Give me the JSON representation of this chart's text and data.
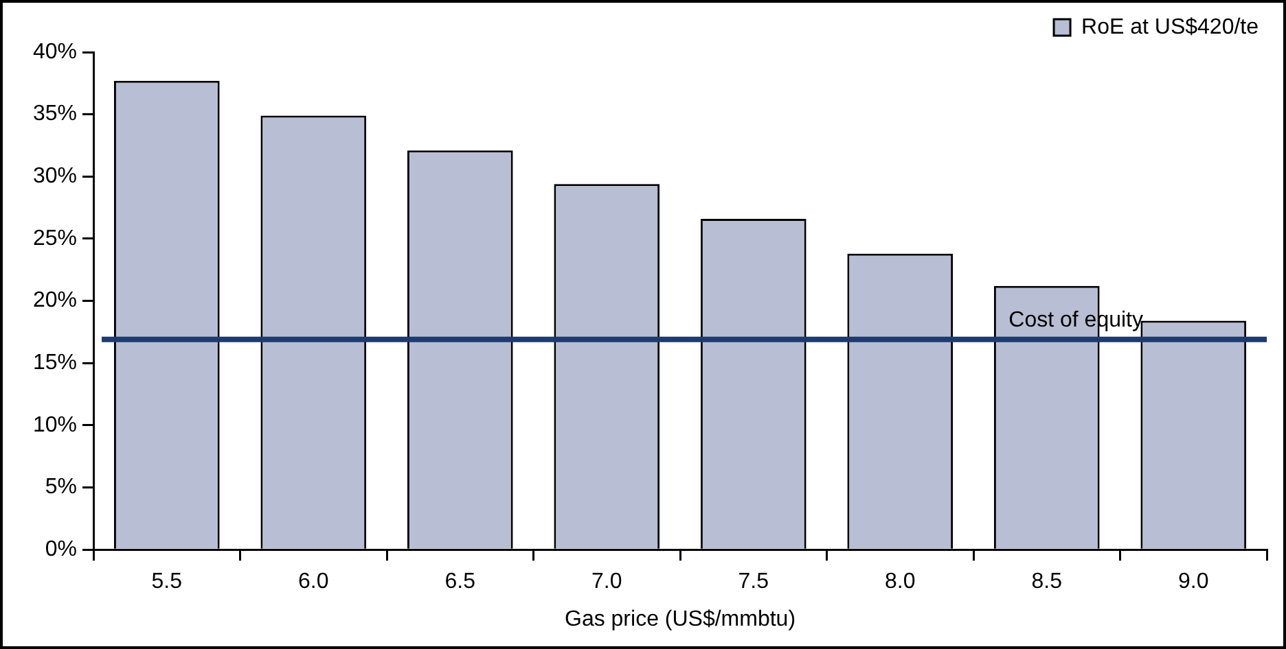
{
  "chart_data": {
    "type": "bar",
    "xlabel": "Gas price (US$/mmbtu)",
    "categories": [
      "5.5",
      "6.0",
      "6.5",
      "7.0",
      "7.5",
      "8.0",
      "8.5",
      "9.0"
    ],
    "series": [
      {
        "name": "RoE at US$420/te",
        "color": "#b8bed4",
        "values": [
          37.7,
          34.9,
          32.1,
          29.4,
          26.6,
          23.8,
          21.2,
          18.4
        ]
      }
    ],
    "ylim": [
      0,
      40
    ],
    "yticks": [
      {
        "value": 0,
        "label": "0%"
      },
      {
        "value": 5,
        "label": "5%"
      },
      {
        "value": 10,
        "label": "10%"
      },
      {
        "value": 15,
        "label": "15%"
      },
      {
        "value": 20,
        "label": "20%"
      },
      {
        "value": 25,
        "label": "25%"
      },
      {
        "value": 30,
        "label": "30%"
      },
      {
        "value": 35,
        "label": "35%"
      },
      {
        "value": 40,
        "label": "40%"
      }
    ],
    "ref_lines": [
      {
        "axis": "y",
        "value": 16.9,
        "label": "Cost of equity",
        "color": "#1f3a6e"
      }
    ],
    "grid": false,
    "legend": "top right"
  }
}
